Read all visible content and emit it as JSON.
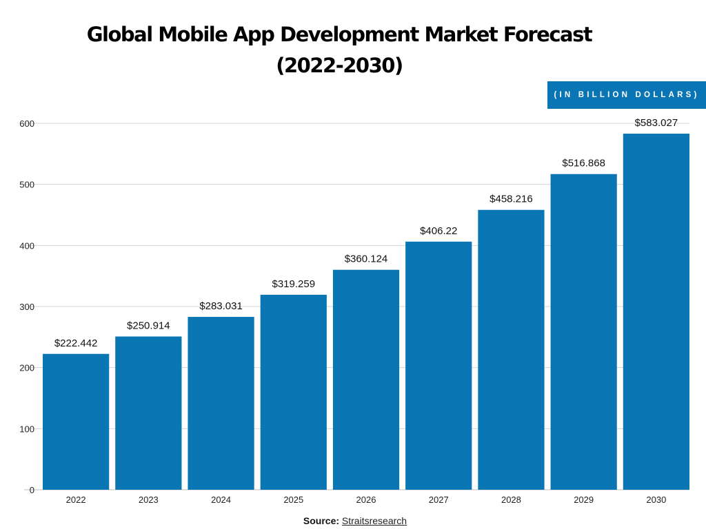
{
  "chart_data": {
    "type": "bar",
    "title_line1": "Global Mobile App Development Market Forecast",
    "title_line2": "(2022-2030)",
    "unit_badge": "(IN BILLION DOLLARS)",
    "categories": [
      "2022",
      "2023",
      "2024",
      "2025",
      "2026",
      "2027",
      "2028",
      "2029",
      "2030"
    ],
    "values": [
      222.442,
      250.914,
      283.031,
      319.259,
      360.124,
      406.22,
      458.216,
      516.868,
      583.027
    ],
    "data_labels": [
      "$222.442",
      "$250.914",
      "$283.031",
      "$319.259",
      "$360.124",
      "$406.22",
      "$458.216",
      "$516.868",
      "$583.027"
    ],
    "yticks": [
      0,
      100,
      200,
      300,
      400,
      500,
      600
    ],
    "ylim": [
      0,
      600
    ],
    "grid": true,
    "xlabel": "",
    "ylabel": "",
    "bar_color": "#0b76b4",
    "badge_color": "#0a75b5"
  },
  "source": {
    "label": "Source:",
    "link": "Straitsresearch"
  }
}
